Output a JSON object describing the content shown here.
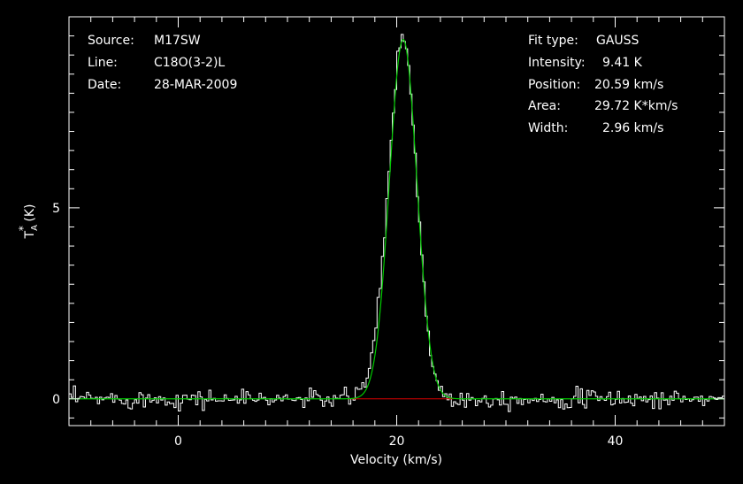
{
  "chart_data": {
    "type": "line",
    "xlabel": "Velocity (km/s)",
    "ylabel": "T_A^* (K)",
    "ylabel_main": "T",
    "ylabel_sub": "A",
    "ylabel_sup": "*",
    "ylabel_unit": " (K)",
    "xlim": [
      -10,
      50
    ],
    "ylim": [
      -0.7,
      10.0
    ],
    "x_ticks": [
      0,
      20,
      40
    ],
    "x_tick_labels": [
      "0",
      "20",
      "40"
    ],
    "y_ticks": [
      0,
      5
    ],
    "y_tick_labels": [
      "0",
      "5"
    ],
    "x_minor_step": 2,
    "y_minor_step": 0.5,
    "grid": false,
    "fit": {
      "amplitude": 9.41,
      "center": 20.59,
      "fwhm": 2.96,
      "color": "#00cc00"
    },
    "baseline": {
      "x_range": [
        15.5,
        25.2
      ],
      "value": 0,
      "color": "#dd0000"
    },
    "spectrum": {
      "color": "#ffffff",
      "x_start": -10,
      "x_end": 50,
      "step": 0.2,
      "noise_rms": 0.12,
      "wing": {
        "center": 18.4,
        "amplitude": 0.6,
        "width": 1.0
      }
    },
    "info_left": [
      {
        "label": "Source:",
        "value": "M17SW"
      },
      {
        "label": "Line:",
        "value": "C18O(3-2)L"
      },
      {
        "label": "Date:",
        "value": "28-MAR-2009"
      }
    ],
    "info_right": [
      {
        "label": "Fit type:",
        "value": "GAUSS"
      },
      {
        "label": "Intensity:",
        "value": "9.41 K"
      },
      {
        "label": "Position:",
        "value": "20.59 km/s"
      },
      {
        "label": "Area:",
        "value": "29.72 K*km/s"
      },
      {
        "label": "Width:",
        "value": "2.96 km/s"
      }
    ]
  }
}
